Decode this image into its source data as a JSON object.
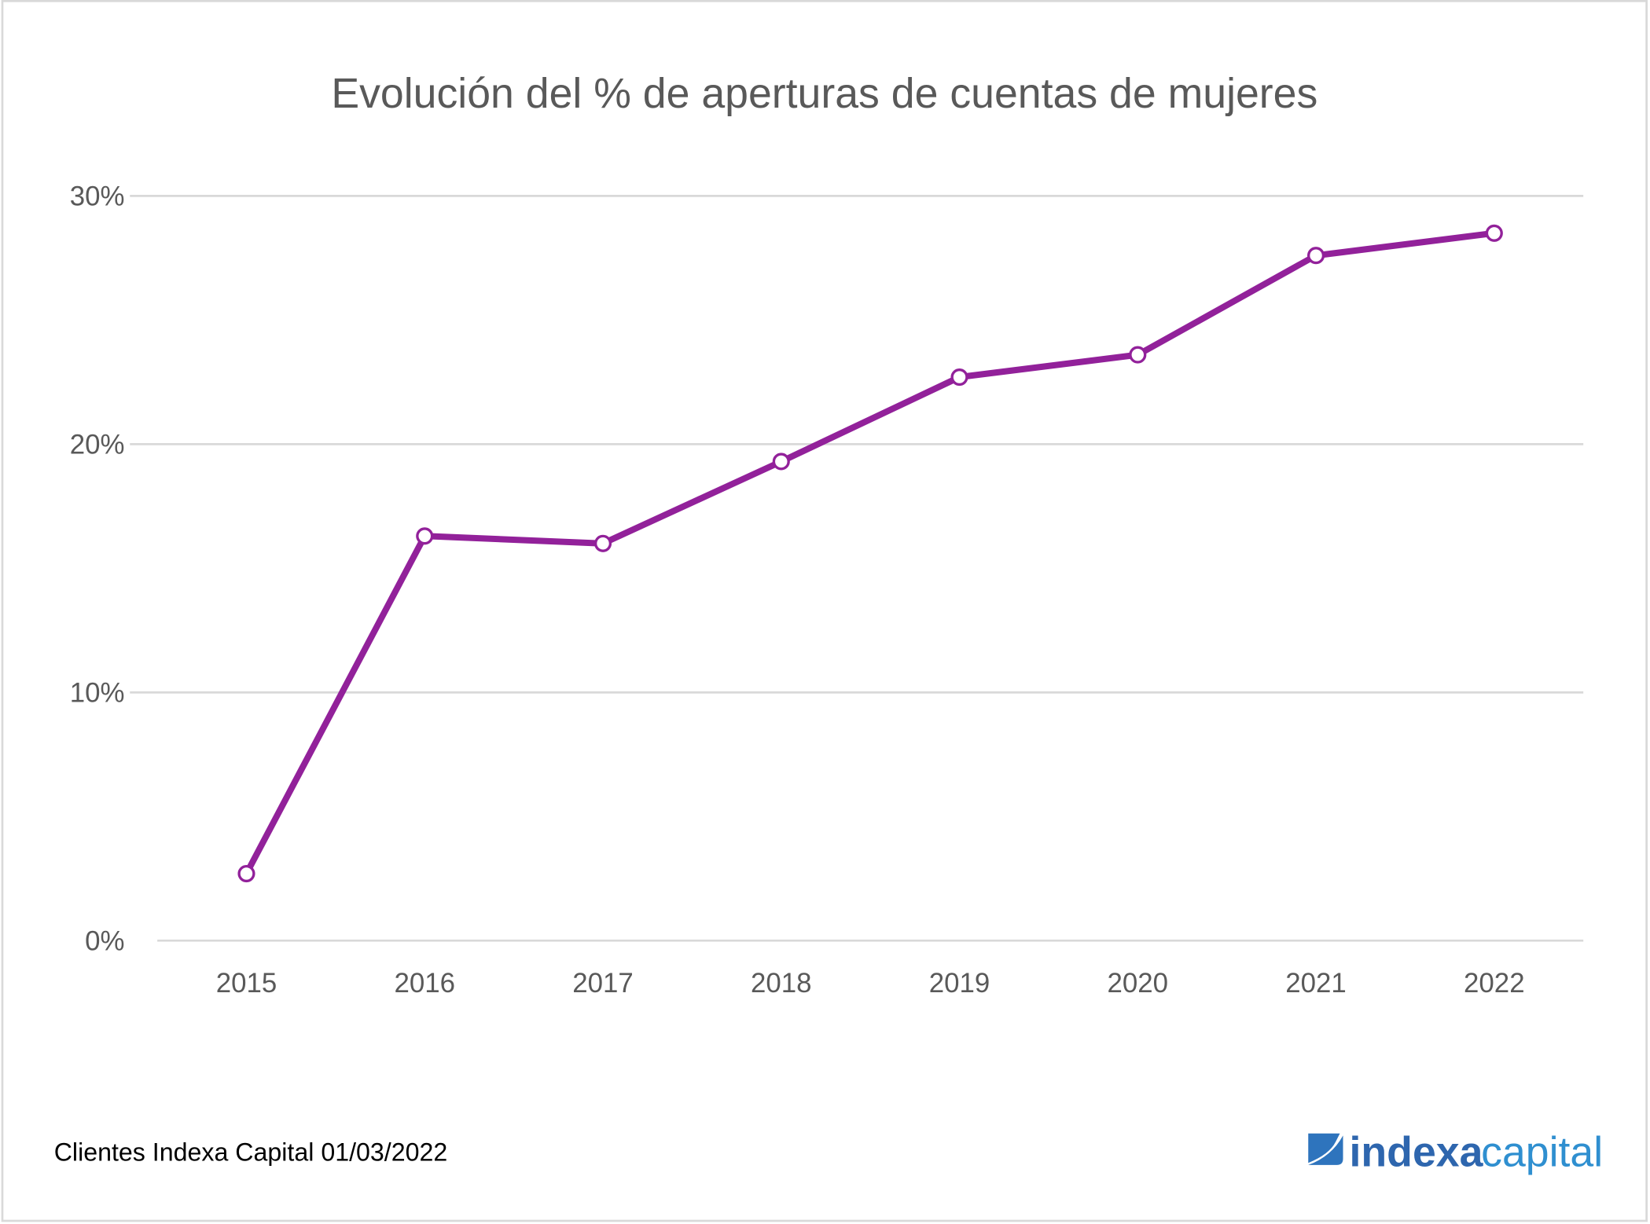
{
  "chart_data": {
    "type": "line",
    "title": "Evolución del % de aperturas de cuentas de mujeres",
    "xlabel": "",
    "ylabel": "",
    "categories": [
      "2015",
      "2016",
      "2017",
      "2018",
      "2019",
      "2020",
      "2021",
      "2022"
    ],
    "series": [
      {
        "values": [
          2.7,
          16.3,
          16.0,
          19.3,
          22.7,
          23.6,
          27.6,
          28.5
        ],
        "color": "#92219A"
      }
    ],
    "y_unit": "%",
    "ylim": [
      0,
      30
    ],
    "yticks": [
      "0%",
      "10%",
      "20%",
      "30%"
    ],
    "ytick_values": [
      0,
      10,
      20,
      30
    ],
    "grid": true,
    "markers": "open-circle"
  },
  "footer": {
    "source": "Clientes Indexa Capital 01/03/2022",
    "logo_text": "indexacapital",
    "logo_colors": {
      "indexa": "#2E66AE",
      "capital": "#2F8FD0"
    }
  },
  "colors": {
    "gridline": "#D9D9D9",
    "text": "#595959",
    "frame": "#D9D9D9"
  }
}
